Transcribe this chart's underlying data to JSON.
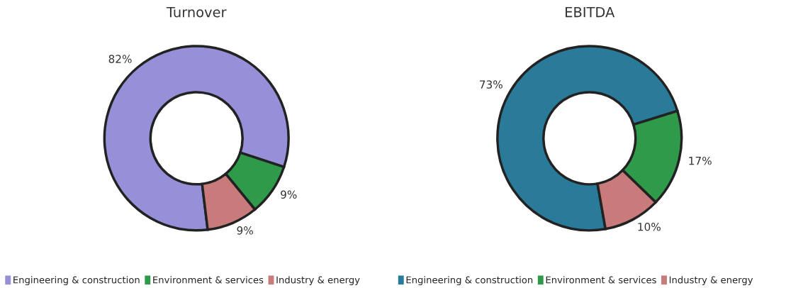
{
  "chart_data": [
    {
      "type": "donut",
      "title": "Turnover",
      "categories": [
        "Engineering & construction",
        "Environment & services",
        "Industry & energy"
      ],
      "values": [
        82,
        9,
        9
      ],
      "value_labels": [
        "82%",
        "9%",
        "9%"
      ],
      "colors": [
        "#9690d8",
        "#2e9a4a",
        "#c97a7a"
      ],
      "legend": "bottom"
    },
    {
      "type": "donut",
      "title": "EBITDA",
      "categories": [
        "Engineering & construction",
        "Environment & services",
        "Industry & energy"
      ],
      "values": [
        73,
        17,
        10
      ],
      "value_labels": [
        "73%",
        "17%",
        "10%"
      ],
      "colors": [
        "#2a7a9a",
        "#2e9a4a",
        "#c97a7a"
      ],
      "legend": "bottom"
    }
  ]
}
